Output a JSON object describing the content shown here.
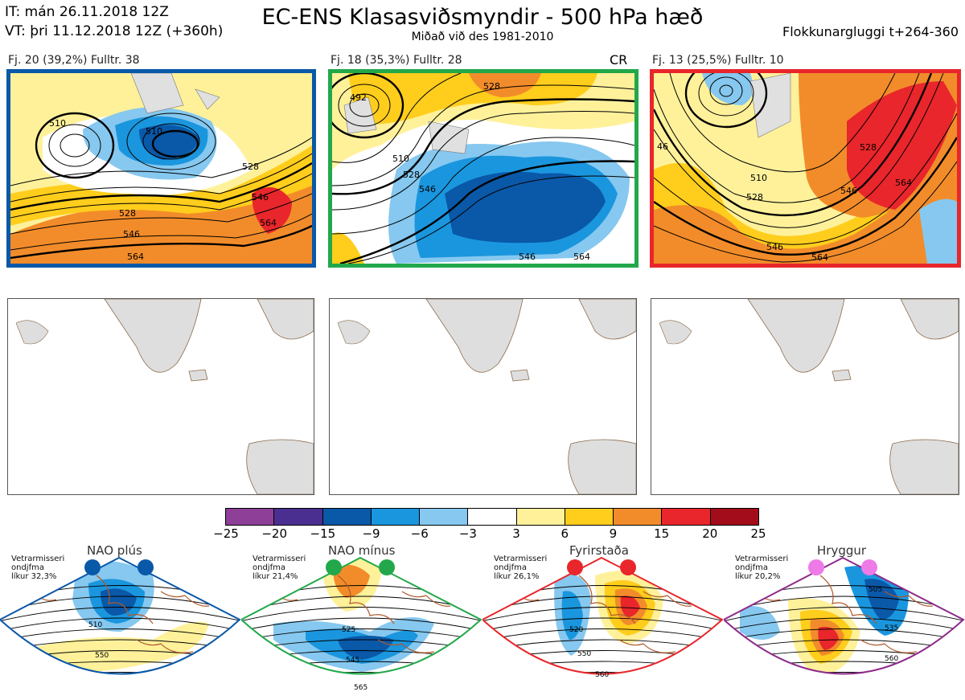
{
  "header": {
    "it_line": "IT: mán 26.11.2018 12Z",
    "vt_line": "VT: þri 11.12.2018 12Z  (+360h)",
    "title": "EC-ENS Klasasviðsmyndir - 500 hPa hæð",
    "subtitle": "Miðað við des 1981-2010",
    "window": "Flokkunargluggi t+264-360"
  },
  "clusters": [
    {
      "label": "Fj. 20 (39,2%)   Fulltr. 38",
      "tag": "",
      "frame_color": "#0a58a8",
      "contour_labels": [
        "510",
        "510",
        "528",
        "546",
        "564",
        "528",
        "546",
        "564"
      ]
    },
    {
      "label": "Fj. 18 (35,3%)   Fulltr. 28",
      "tag": "CR",
      "frame_color": "#22a84a",
      "contour_labels": [
        "492",
        "510",
        "528",
        "546",
        "528",
        "546",
        "564"
      ]
    },
    {
      "label": "Fj. 13 (25,5%)   Fulltr. 10",
      "tag": "",
      "frame_color": "#e8262b",
      "contour_labels": [
        "46",
        "510",
        "528",
        "528",
        "546",
        "564",
        "546",
        "564"
      ]
    }
  ],
  "colorbar": {
    "ticks": [
      "−25",
      "−20",
      "−15",
      "−9",
      "−6",
      "−3",
      "3",
      "6",
      "9",
      "15",
      "20",
      "25"
    ],
    "colors": [
      "#8e3f98",
      "#4a2f91",
      "#0a58a8",
      "#1a96de",
      "#86c8ef",
      "#ffffff",
      "#fff19a",
      "#ffcd1c",
      "#f28c2a",
      "#e8262b",
      "#a30c1a"
    ]
  },
  "regimes": [
    {
      "name": "NAO plús",
      "note": [
        "Vetrarmisseri",
        "ondjfma",
        "líkur 32,3%"
      ],
      "color": "#0a58a8",
      "contour_labels": [
        "510",
        "550"
      ]
    },
    {
      "name": "NAO mínus",
      "note": [
        "Vetrarmisseri",
        "ondjfma",
        "líkur 21,4%"
      ],
      "color": "#22a84a",
      "contour_labels": [
        "525",
        "545",
        "565"
      ]
    },
    {
      "name": "Fyrirstaða",
      "note": [
        "Vetrarmisseri",
        "ondjfma",
        "líkur 26,1%"
      ],
      "color": "#e8262b",
      "contour_labels": [
        "520",
        "550",
        "560"
      ]
    },
    {
      "name": "Hryggur",
      "note": [
        "Vetrarmisseri",
        "ondjfma",
        "líkur 20,2%"
      ],
      "color": "#8e2b8c",
      "dot_color": "#ee7ae8",
      "contour_labels": [
        "505",
        "535",
        "560"
      ]
    }
  ]
}
